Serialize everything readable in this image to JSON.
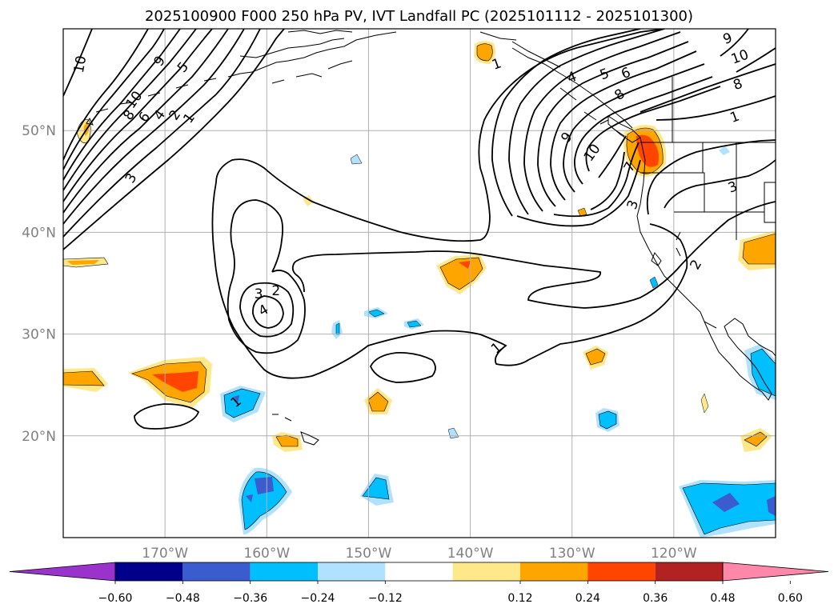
{
  "title": "2025100900 F000 250 hPa PV, IVT Landfall PC (2025101112 - 2025101300)",
  "map": {
    "lon_range": [
      -180,
      -110
    ],
    "lat_range": [
      10,
      60
    ],
    "lon_ticks": [
      {
        "value": -170,
        "label": "170°W"
      },
      {
        "value": -160,
        "label": "160°W"
      },
      {
        "value": -150,
        "label": "150°W"
      },
      {
        "value": -140,
        "label": "140°W"
      },
      {
        "value": -130,
        "label": "130°W"
      },
      {
        "value": -120,
        "label": "120°W"
      }
    ],
    "lat_ticks": [
      {
        "value": 50,
        "label": "50°N"
      },
      {
        "value": 40,
        "label": "40°N"
      },
      {
        "value": 30,
        "label": "30°N"
      },
      {
        "value": 20,
        "label": "20°N"
      }
    ],
    "grid": true,
    "contour_labels": [
      {
        "text": "10",
        "lon": -178.3,
        "lat": 56.5,
        "rot": -80
      },
      {
        "text": "9",
        "lon": -170.5,
        "lat": 56.8,
        "rot": -55
      },
      {
        "text": "5",
        "lon": -168.2,
        "lat": 56.2,
        "rot": -50
      },
      {
        "text": "10",
        "lon": -173,
        "lat": 53,
        "rot": -55
      },
      {
        "text": "8",
        "lon": -173.5,
        "lat": 51.5,
        "rot": -55
      },
      {
        "text": "6",
        "lon": -172,
        "lat": 51.3,
        "rot": -55
      },
      {
        "text": "4",
        "lon": -170.5,
        "lat": 51.5,
        "rot": -55
      },
      {
        "text": "2",
        "lon": -169,
        "lat": 51.5,
        "rot": -55
      },
      {
        "text": "1",
        "lon": -167.6,
        "lat": 51.2,
        "rot": -55
      },
      {
        "text": "3",
        "lon": -173.3,
        "lat": 45.3,
        "rot": -60
      },
      {
        "text": "3",
        "lon": -160.8,
        "lat": 33.9,
        "rot": 0
      },
      {
        "text": "2",
        "lon": -159.1,
        "lat": 34.2,
        "rot": 0
      },
      {
        "text": "4",
        "lon": -160.3,
        "lat": 32.3,
        "rot": -30
      },
      {
        "text": "1",
        "lon": -137.4,
        "lat": 56.5,
        "rot": -20
      },
      {
        "text": "4",
        "lon": -130,
        "lat": 55.2,
        "rot": -20
      },
      {
        "text": "5",
        "lon": -126.8,
        "lat": 55.5,
        "rot": -20
      },
      {
        "text": "6",
        "lon": -124.7,
        "lat": 55.6,
        "rot": -20
      },
      {
        "text": "8",
        "lon": -125.3,
        "lat": 53.5,
        "rot": -35
      },
      {
        "text": "9",
        "lon": -130.5,
        "lat": 49.3,
        "rot": -50
      },
      {
        "text": "10",
        "lon": -128,
        "lat": 47.8,
        "rot": -55
      },
      {
        "text": "7",
        "lon": -124.3,
        "lat": 46.4,
        "rot": -60
      },
      {
        "text": "3",
        "lon": -124,
        "lat": 42.7,
        "rot": -70
      },
      {
        "text": "9",
        "lon": -114.7,
        "lat": 59,
        "rot": -20
      },
      {
        "text": "10",
        "lon": -113.5,
        "lat": 57.2,
        "rot": -20
      },
      {
        "text": "8",
        "lon": -113.7,
        "lat": 54.5,
        "rot": -20
      },
      {
        "text": "1",
        "lon": -114,
        "lat": 51.3,
        "rot": -20
      },
      {
        "text": "3",
        "lon": -114.2,
        "lat": 44.4,
        "rot": -20
      },
      {
        "text": "2",
        "lon": -117.8,
        "lat": 36.8,
        "rot": -60
      },
      {
        "text": "1",
        "lon": -137.4,
        "lat": 28.6,
        "rot": -40
      },
      {
        "text": "1",
        "lon": -163,
        "lat": 23.3,
        "rot": -40
      }
    ]
  },
  "colorbar": {
    "colors": [
      "#9933cc",
      "#00008b",
      "#3a5cce",
      "#00bfff",
      "#b0e2ff",
      "#ffffff",
      "#ffe88a",
      "#ffa500",
      "#ff4500",
      "#b22222",
      "#ff88aa"
    ],
    "tick_values": [
      -0.6,
      -0.48,
      -0.36,
      -0.24,
      -0.12,
      0.12,
      0.24,
      0.36,
      0.48,
      0.6
    ],
    "tick_labels": [
      "−0.60",
      "−0.48",
      "−0.36",
      "−0.24",
      "−0.12",
      "0.12",
      "0.24",
      "0.36",
      "0.48",
      "0.60"
    ]
  },
  "colors": {
    "grid": "#b0b0b0",
    "tick_label": "#808080",
    "contour": "#000000",
    "coast": "#000000"
  }
}
